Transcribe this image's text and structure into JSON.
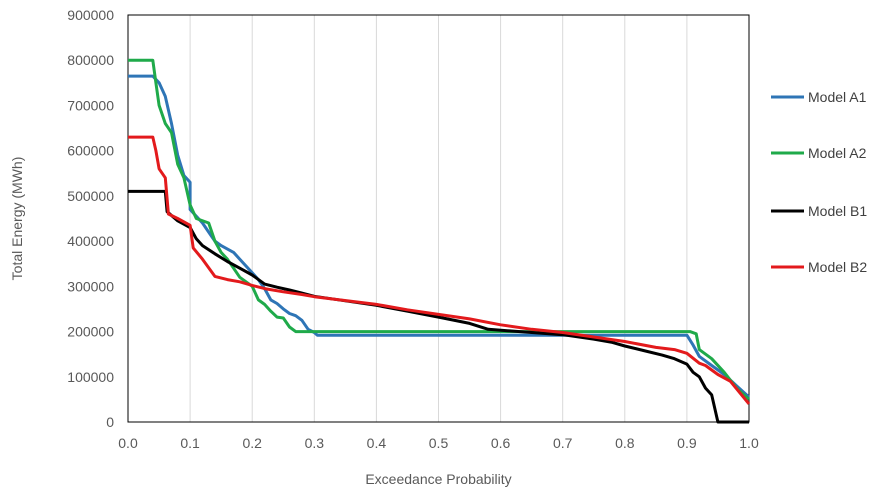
{
  "chart_data": {
    "type": "line",
    "xlabel": "Exceedance Probability",
    "ylabel": "Total Energy (MWh)",
    "xlim": [
      0,
      1
    ],
    "ylim": [
      0,
      900000
    ],
    "grid": "vertical",
    "legend": "right",
    "x_ticks": [
      "0.0",
      "0.1",
      "0.2",
      "0.3",
      "0.4",
      "0.5",
      "0.6",
      "0.7",
      "0.8",
      "0.9",
      "1.0"
    ],
    "y_ticks": [
      "0",
      "100000",
      "200000",
      "300000",
      "400000",
      "500000",
      "600000",
      "700000",
      "800000",
      "900000"
    ],
    "series": [
      {
        "name": "Model A1",
        "color": "#2E75B6",
        "points": [
          [
            0,
            765000
          ],
          [
            0.04,
            765000
          ],
          [
            0.05,
            750000
          ],
          [
            0.06,
            720000
          ],
          [
            0.07,
            660000
          ],
          [
            0.08,
            590000
          ],
          [
            0.09,
            545000
          ],
          [
            0.1,
            530000
          ],
          [
            0.1,
            470000
          ],
          [
            0.12,
            440000
          ],
          [
            0.13,
            420000
          ],
          [
            0.14,
            400000
          ],
          [
            0.15,
            390000
          ],
          [
            0.17,
            375000
          ],
          [
            0.18,
            360000
          ],
          [
            0.19,
            345000
          ],
          [
            0.2,
            330000
          ],
          [
            0.21,
            315000
          ],
          [
            0.22,
            295000
          ],
          [
            0.23,
            270000
          ],
          [
            0.24,
            262000
          ],
          [
            0.25,
            250000
          ],
          [
            0.26,
            240000
          ],
          [
            0.27,
            235000
          ],
          [
            0.28,
            225000
          ],
          [
            0.29,
            205000
          ],
          [
            0.3,
            198000
          ],
          [
            0.305,
            192000
          ],
          [
            0.9,
            192000
          ],
          [
            0.91,
            170000
          ],
          [
            0.92,
            145000
          ],
          [
            0.94,
            125000
          ],
          [
            0.96,
            105000
          ],
          [
            0.98,
            80000
          ],
          [
            1.0,
            55000
          ]
        ]
      },
      {
        "name": "Model A2",
        "color": "#1FAA4A",
        "points": [
          [
            0,
            800000
          ],
          [
            0.04,
            800000
          ],
          [
            0.045,
            750000
          ],
          [
            0.05,
            700000
          ],
          [
            0.06,
            660000
          ],
          [
            0.07,
            640000
          ],
          [
            0.08,
            570000
          ],
          [
            0.09,
            540000
          ],
          [
            0.1,
            480000
          ],
          [
            0.11,
            450000
          ],
          [
            0.13,
            440000
          ],
          [
            0.14,
            400000
          ],
          [
            0.15,
            375000
          ],
          [
            0.16,
            360000
          ],
          [
            0.17,
            340000
          ],
          [
            0.18,
            320000
          ],
          [
            0.2,
            300000
          ],
          [
            0.21,
            270000
          ],
          [
            0.22,
            260000
          ],
          [
            0.23,
            245000
          ],
          [
            0.24,
            232000
          ],
          [
            0.25,
            230000
          ],
          [
            0.26,
            210000
          ],
          [
            0.27,
            200000
          ],
          [
            0.29,
            200000
          ],
          [
            0.3,
            200000
          ],
          [
            0.905,
            200000
          ],
          [
            0.915,
            195000
          ],
          [
            0.92,
            160000
          ],
          [
            0.94,
            140000
          ],
          [
            0.96,
            110000
          ],
          [
            0.98,
            75000
          ],
          [
            1.0,
            50000
          ]
        ]
      },
      {
        "name": "Model B1",
        "color": "#000000",
        "points": [
          [
            0,
            510000
          ],
          [
            0.06,
            510000
          ],
          [
            0.063,
            465000
          ],
          [
            0.08,
            445000
          ],
          [
            0.1,
            430000
          ],
          [
            0.11,
            405000
          ],
          [
            0.12,
            390000
          ],
          [
            0.14,
            372000
          ],
          [
            0.16,
            355000
          ],
          [
            0.18,
            340000
          ],
          [
            0.2,
            325000
          ],
          [
            0.22,
            305000
          ],
          [
            0.24,
            298000
          ],
          [
            0.26,
            292000
          ],
          [
            0.28,
            285000
          ],
          [
            0.3,
            278000
          ],
          [
            0.4,
            258000
          ],
          [
            0.45,
            245000
          ],
          [
            0.5,
            232000
          ],
          [
            0.55,
            218000
          ],
          [
            0.58,
            205000
          ],
          [
            0.65,
            198000
          ],
          [
            0.7,
            193000
          ],
          [
            0.75,
            183000
          ],
          [
            0.78,
            176000
          ],
          [
            0.8,
            168000
          ],
          [
            0.83,
            158000
          ],
          [
            0.86,
            148000
          ],
          [
            0.88,
            140000
          ],
          [
            0.9,
            128000
          ],
          [
            0.91,
            110000
          ],
          [
            0.92,
            100000
          ],
          [
            0.93,
            75000
          ],
          [
            0.94,
            60000
          ],
          [
            0.945,
            30000
          ],
          [
            0.95,
            0
          ],
          [
            1.0,
            0
          ]
        ]
      },
      {
        "name": "Model B2",
        "color": "#E31A1C",
        "points": [
          [
            0,
            630000
          ],
          [
            0.04,
            630000
          ],
          [
            0.045,
            600000
          ],
          [
            0.05,
            560000
          ],
          [
            0.06,
            540000
          ],
          [
            0.065,
            460000
          ],
          [
            0.08,
            450000
          ],
          [
            0.1,
            435000
          ],
          [
            0.105,
            385000
          ],
          [
            0.12,
            360000
          ],
          [
            0.14,
            322000
          ],
          [
            0.16,
            315000
          ],
          [
            0.18,
            310000
          ],
          [
            0.2,
            302000
          ],
          [
            0.22,
            295000
          ],
          [
            0.25,
            288000
          ],
          [
            0.28,
            282000
          ],
          [
            0.3,
            277000
          ],
          [
            0.4,
            260000
          ],
          [
            0.45,
            248000
          ],
          [
            0.5,
            238000
          ],
          [
            0.55,
            228000
          ],
          [
            0.6,
            215000
          ],
          [
            0.65,
            205000
          ],
          [
            0.7,
            198000
          ],
          [
            0.75,
            188000
          ],
          [
            0.8,
            178000
          ],
          [
            0.85,
            165000
          ],
          [
            0.88,
            160000
          ],
          [
            0.9,
            152000
          ],
          [
            0.92,
            130000
          ],
          [
            0.93,
            125000
          ],
          [
            0.95,
            105000
          ],
          [
            0.97,
            90000
          ],
          [
            1.0,
            40000
          ]
        ]
      }
    ]
  }
}
